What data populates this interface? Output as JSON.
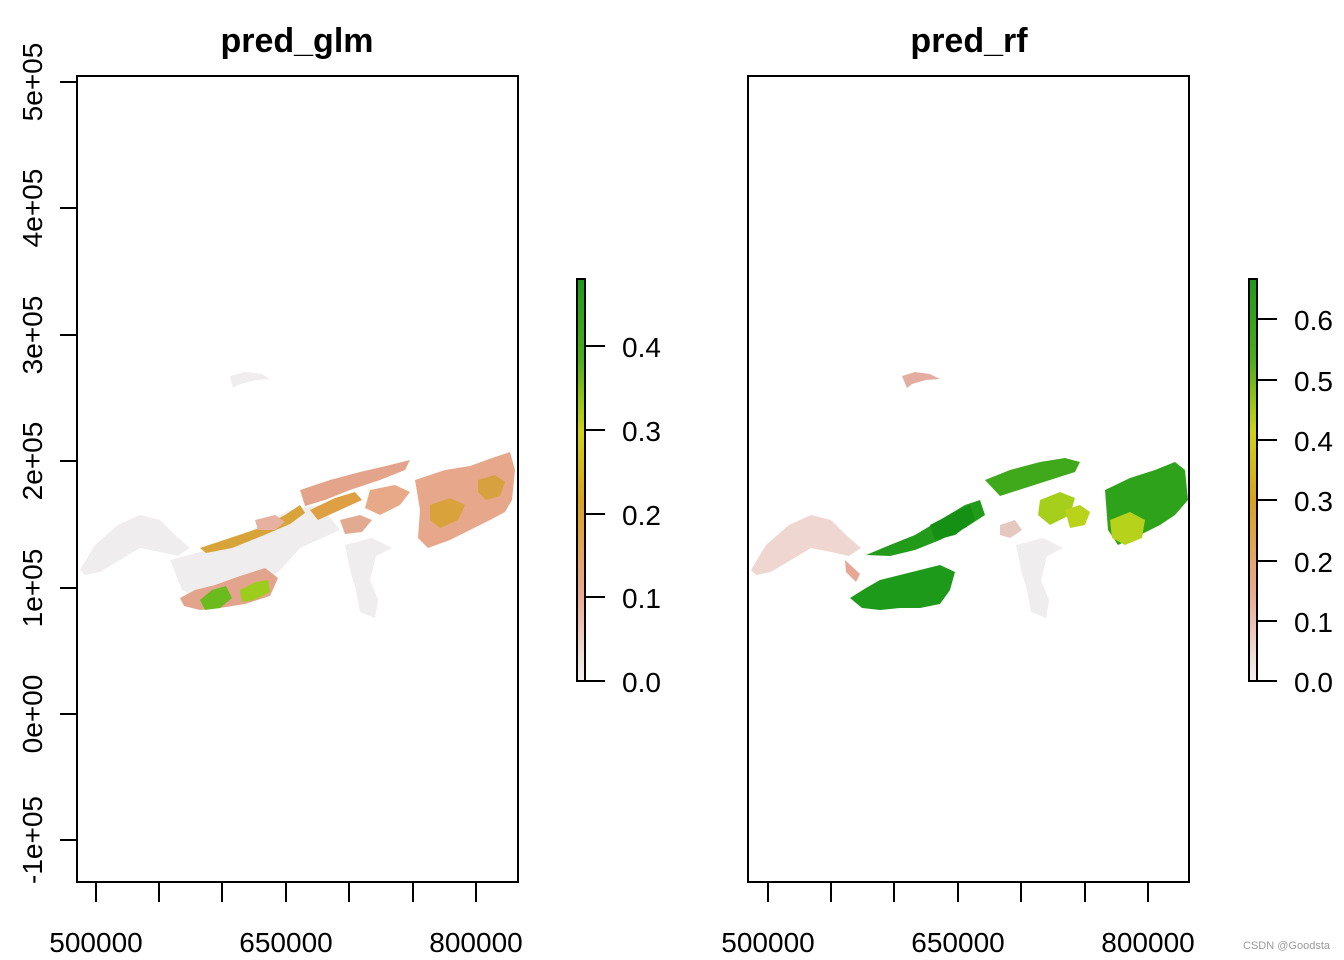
{
  "panels": [
    {
      "title": "pred_glm",
      "x_tick_labels": [
        "500000",
        "650000",
        "800000"
      ],
      "y_tick_labels": [
        "-1e+05",
        "0e+00",
        "1e+05",
        "2e+05",
        "3e+05",
        "4e+05",
        "5e+05"
      ],
      "legend": {
        "min": 0.0,
        "max": 0.48,
        "tick_labels": [
          "0.0",
          "0.1",
          "0.2",
          "0.3",
          "0.4"
        ]
      }
    },
    {
      "title": "pred_rf",
      "x_tick_labels": [
        "500000",
        "650000",
        "800000"
      ],
      "y_tick_labels": [],
      "legend": {
        "min": 0.0,
        "max": 0.67,
        "tick_labels": [
          "0.0",
          "0.1",
          "0.2",
          "0.3",
          "0.4",
          "0.5",
          "0.6"
        ]
      }
    }
  ],
  "colors": {
    "ramp_low": "#f2f2f2",
    "ramp_lowmid": "#e8a98f",
    "ramp_mid": "#d7a21f",
    "ramp_upper": "#cfd11a",
    "ramp_high": "#1e9a1a",
    "background_extent": "#f0eeee",
    "axis": "#000000"
  },
  "watermark": "CSDN @Goodsta"
}
